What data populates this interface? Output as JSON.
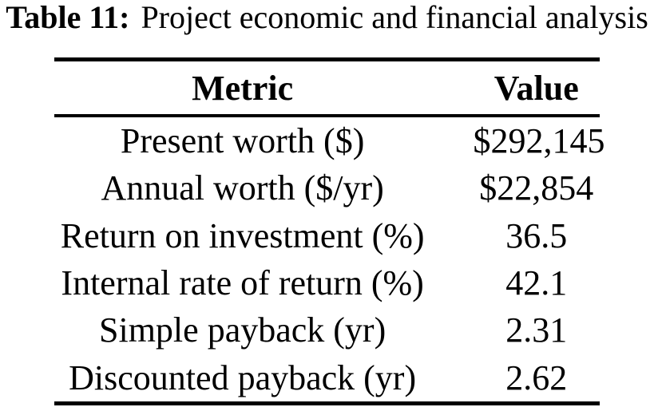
{
  "caption": {
    "label": "Table 11:",
    "title": "Project economic and financial analysis"
  },
  "table": {
    "columns": [
      "Metric",
      "Value"
    ],
    "rows": [
      {
        "metric": "Present worth ($)",
        "value": "$292,145"
      },
      {
        "metric": "Annual worth ($/yr)",
        "value": "$22,854"
      },
      {
        "metric": "Return on investment (%)",
        "value": "36.5"
      },
      {
        "metric": "Internal rate of return (%)",
        "value": "42.1"
      },
      {
        "metric": "Simple payback (yr)",
        "value": "2.31"
      },
      {
        "metric": "Discounted payback (yr)",
        "value": "2.62"
      }
    ]
  },
  "colors": {
    "text": "#000000",
    "background": "#ffffff",
    "rule": "#000000"
  }
}
